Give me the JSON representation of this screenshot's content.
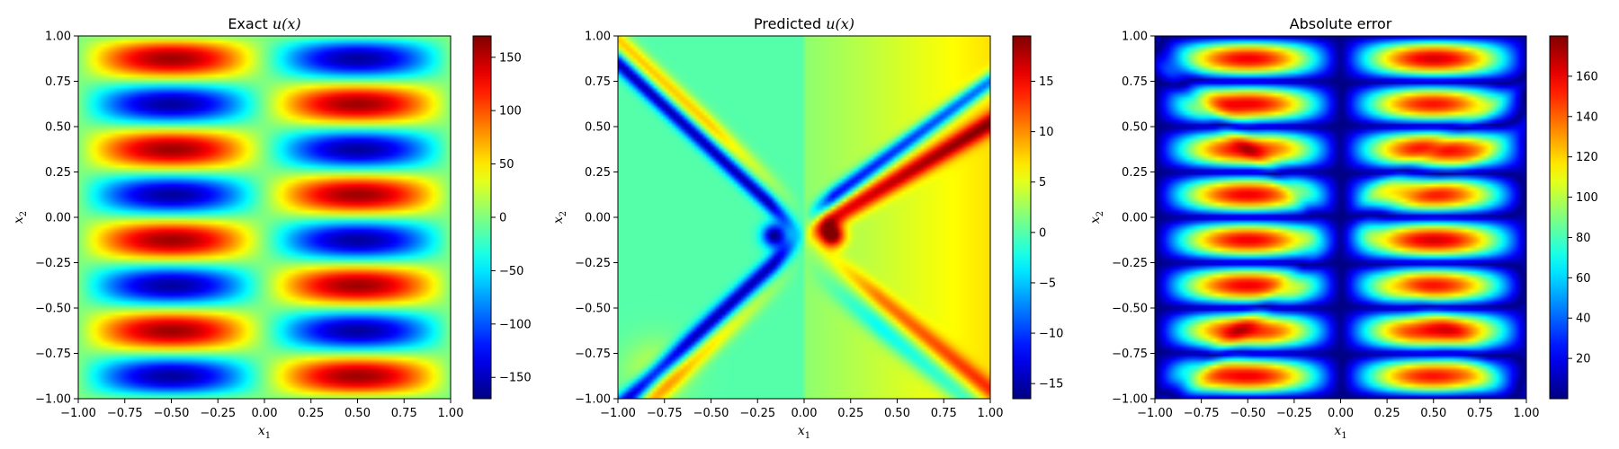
{
  "chart_data": [
    {
      "type": "heatmap",
      "title_text": "Exact ",
      "title_math": "u(x)",
      "xlabel": "x",
      "xlabel_sub": "1",
      "ylabel": "x",
      "ylabel_sub": "2",
      "xlim": [
        -1,
        1
      ],
      "ylim": [
        -1,
        1
      ],
      "xticks": [
        "−1.00",
        "−0.75",
        "−0.50",
        "−0.25",
        "0.00",
        "0.25",
        "0.50",
        "0.75",
        "1.00"
      ],
      "yticks": [
        "−1.00",
        "−0.75",
        "−0.50",
        "−0.25",
        "0.00",
        "0.25",
        "0.50",
        "0.75",
        "1.00"
      ],
      "colorbar": {
        "min": -170,
        "max": 170,
        "ticks": [
          -150,
          -100,
          -50,
          0,
          50,
          100,
          150
        ],
        "tick_labels": [
          "−150",
          "−100",
          "−50",
          "0",
          "50",
          "100",
          "150"
        ]
      },
      "colormap": "jet",
      "field": "160 * sign(x1) * sin(pi*|x1|) * sin(4*pi*x2)"
    },
    {
      "type": "heatmap",
      "title_text": "Predicted ",
      "title_math": "u(x)",
      "xlabel": "x",
      "xlabel_sub": "1",
      "ylabel": "x",
      "ylabel_sub": "2",
      "xlim": [
        -1,
        1
      ],
      "ylim": [
        -1,
        1
      ],
      "xticks": [
        "−1.00",
        "−0.75",
        "−0.50",
        "−0.25",
        "0.00",
        "0.25",
        "0.50",
        "0.75",
        "1.00"
      ],
      "yticks": [
        "−1.00",
        "−0.75",
        "−0.50",
        "−0.25",
        "0.00",
        "0.25",
        "0.50",
        "0.75",
        "1.00"
      ],
      "colorbar": {
        "min": -16.5,
        "max": 19.5,
        "ticks": [
          -15,
          -10,
          -5,
          0,
          5,
          10,
          15
        ],
        "tick_labels": [
          "−15",
          "−10",
          "−5",
          "0",
          "5",
          "10",
          "15"
        ]
      },
      "colormap": "jet",
      "field": "X-shaped bands through (0,-0.1); negative on the left/upper-right band, positive on the right/lower-left band"
    },
    {
      "type": "heatmap",
      "title_text": "Absolute error",
      "title_math": "",
      "xlabel": "x",
      "xlabel_sub": "1",
      "ylabel": "x",
      "ylabel_sub": "2",
      "xlim": [
        -1,
        1
      ],
      "ylim": [
        -1,
        1
      ],
      "xticks": [
        "−1.00",
        "−0.75",
        "−0.50",
        "−0.25",
        "0.00",
        "0.25",
        "0.50",
        "0.75",
        "1.00"
      ],
      "yticks": [
        "−1.00",
        "−0.75",
        "−0.50",
        "−0.25",
        "0.00",
        "0.25",
        "0.50",
        "0.75",
        "1.00"
      ],
      "colorbar": {
        "min": 0,
        "max": 180,
        "ticks": [
          20,
          40,
          60,
          80,
          100,
          120,
          140,
          160
        ],
        "tick_labels": [
          "20",
          "40",
          "60",
          "80",
          "100",
          "120",
          "140",
          "160"
        ]
      },
      "colormap": "jet",
      "field": "|exact - predicted|"
    }
  ]
}
